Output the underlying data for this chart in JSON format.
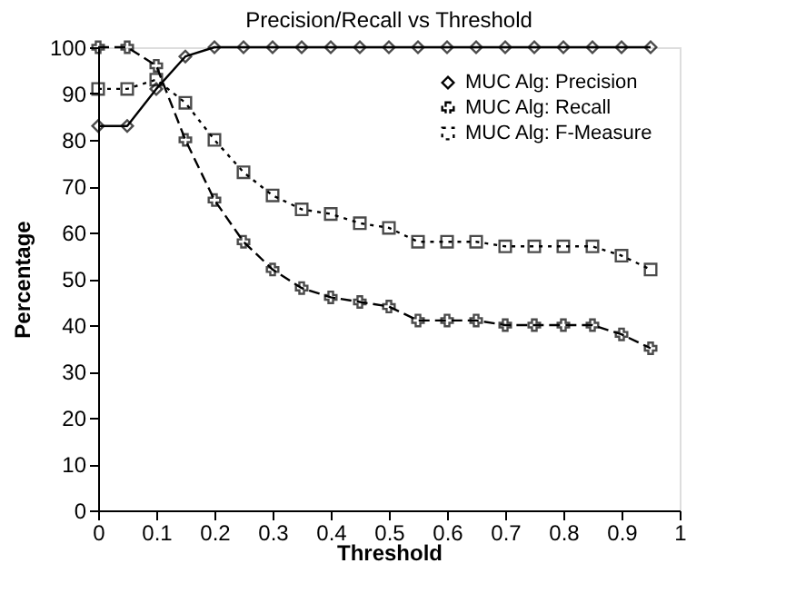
{
  "chart_data": {
    "type": "line",
    "title": "Precision/Recall vs Threshold",
    "xlabel": "Threshold",
    "ylabel": "Percentage",
    "x": [
      0,
      0.05,
      0.1,
      0.15,
      0.2,
      0.25,
      0.3,
      0.35,
      0.4,
      0.45,
      0.5,
      0.55,
      0.6,
      0.65,
      0.7,
      0.75,
      0.8,
      0.85,
      0.9,
      0.95
    ],
    "series": [
      {
        "name": "MUC Alg: Precision",
        "color": "#000000",
        "marker": "diamond",
        "line_style": "solid",
        "values": [
          83,
          83,
          91,
          98,
          100,
          100,
          100,
          100,
          100,
          100,
          100,
          100,
          100,
          100,
          100,
          100,
          100,
          100,
          100,
          100
        ]
      },
      {
        "name": "MUC Alg: Recall",
        "color": "#000000",
        "marker": "cross",
        "line_style": "dashed",
        "values": [
          100,
          100,
          96,
          80,
          67,
          58,
          52,
          48,
          46,
          45,
          44,
          41,
          41,
          41,
          40,
          40,
          40,
          40,
          38,
          35
        ]
      },
      {
        "name": "MUC Alg: F-Measure",
        "color": "#000000",
        "marker": "square",
        "line_style": "dotted",
        "values": [
          91,
          91,
          93,
          88,
          80,
          73,
          68,
          65,
          64,
          62,
          61,
          58,
          58,
          58,
          57,
          57,
          57,
          57,
          55,
          52
        ]
      }
    ],
    "xlim": [
      0,
      1
    ],
    "xticks": [
      0,
      0.1,
      0.2,
      0.3,
      0.4,
      0.5,
      0.6,
      0.7,
      0.8,
      0.9,
      1
    ],
    "ylim": [
      0,
      100
    ],
    "yticks": [
      0,
      10,
      20,
      30,
      40,
      50,
      60,
      70,
      80,
      90,
      100
    ],
    "grid": false,
    "legend": "top right"
  }
}
